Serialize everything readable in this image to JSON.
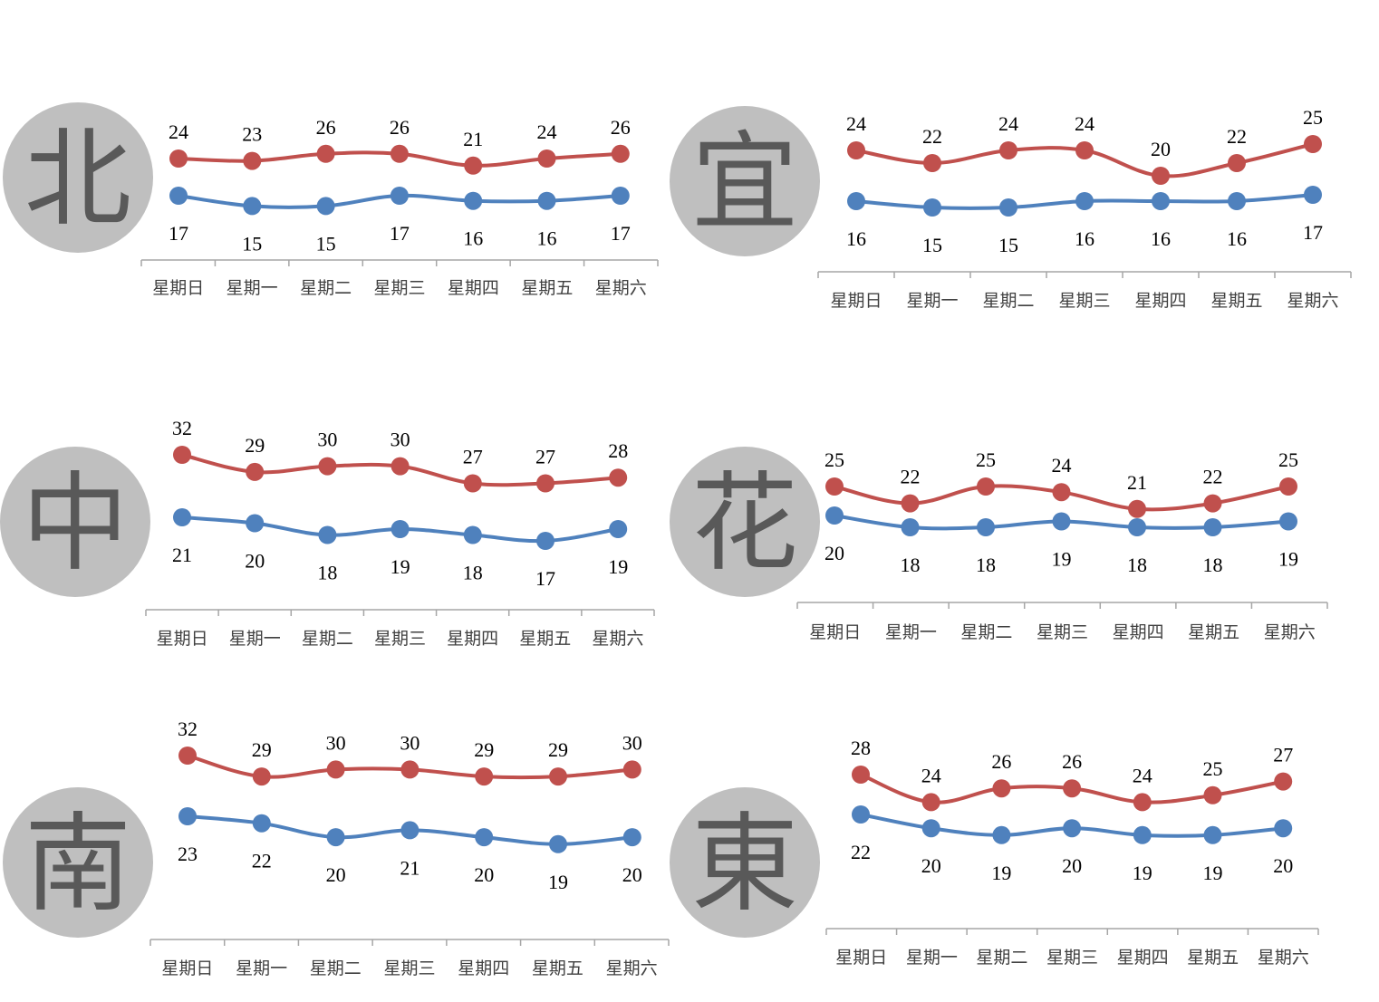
{
  "categories": [
    "星期日",
    "星期一",
    "星期二",
    "星期三",
    "星期四",
    "星期五",
    "星期六"
  ],
  "colors": {
    "high": "#c0504d",
    "low": "#4f81bd",
    "circle": "#bfbfbf",
    "char": "#595959",
    "axis": "#a6a6a6"
  },
  "chart_data": [
    {
      "type": "line",
      "region": "北",
      "categories": [
        "星期日",
        "星期一",
        "星期二",
        "星期三",
        "星期四",
        "星期五",
        "星期六"
      ],
      "series": [
        {
          "values": [
            24,
            23,
            26,
            26,
            21,
            24,
            26
          ]
        },
        {
          "values": [
            17,
            15,
            15,
            17,
            16,
            16,
            17
          ]
        }
      ]
    },
    {
      "type": "line",
      "region": "宜",
      "categories": [
        "星期日",
        "星期一",
        "星期二",
        "星期三",
        "星期四",
        "星期五",
        "星期六"
      ],
      "series": [
        {
          "values": [
            24,
            22,
            24,
            24,
            20,
            22,
            25
          ]
        },
        {
          "values": [
            16,
            15,
            15,
            16,
            16,
            16,
            17
          ]
        }
      ]
    },
    {
      "type": "line",
      "region": "中",
      "categories": [
        "星期日",
        "星期一",
        "星期二",
        "星期三",
        "星期四",
        "星期五",
        "星期六"
      ],
      "series": [
        {
          "values": [
            32,
            29,
            30,
            30,
            27,
            27,
            28
          ]
        },
        {
          "values": [
            21,
            20,
            18,
            19,
            18,
            17,
            19
          ]
        }
      ]
    },
    {
      "type": "line",
      "region": "花",
      "categories": [
        "星期日",
        "星期一",
        "星期二",
        "星期三",
        "星期四",
        "星期五",
        "星期六"
      ],
      "series": [
        {
          "values": [
            25,
            22,
            25,
            24,
            21,
            22,
            25
          ]
        },
        {
          "values": [
            20,
            18,
            18,
            19,
            18,
            18,
            19
          ]
        }
      ]
    },
    {
      "type": "line",
      "region": "南",
      "categories": [
        "星期日",
        "星期一",
        "星期二",
        "星期三",
        "星期四",
        "星期五",
        "星期六"
      ],
      "series": [
        {
          "values": [
            32,
            29,
            30,
            30,
            29,
            29,
            30
          ]
        },
        {
          "values": [
            23,
            22,
            20,
            21,
            20,
            19,
            20
          ]
        }
      ]
    },
    {
      "type": "line",
      "region": "東",
      "categories": [
        "星期日",
        "星期一",
        "星期二",
        "星期三",
        "星期四",
        "星期五",
        "星期六"
      ],
      "series": [
        {
          "values": [
            28,
            24,
            26,
            26,
            24,
            25,
            27
          ]
        },
        {
          "values": [
            22,
            20,
            19,
            20,
            19,
            19,
            20
          ]
        }
      ]
    }
  ]
}
